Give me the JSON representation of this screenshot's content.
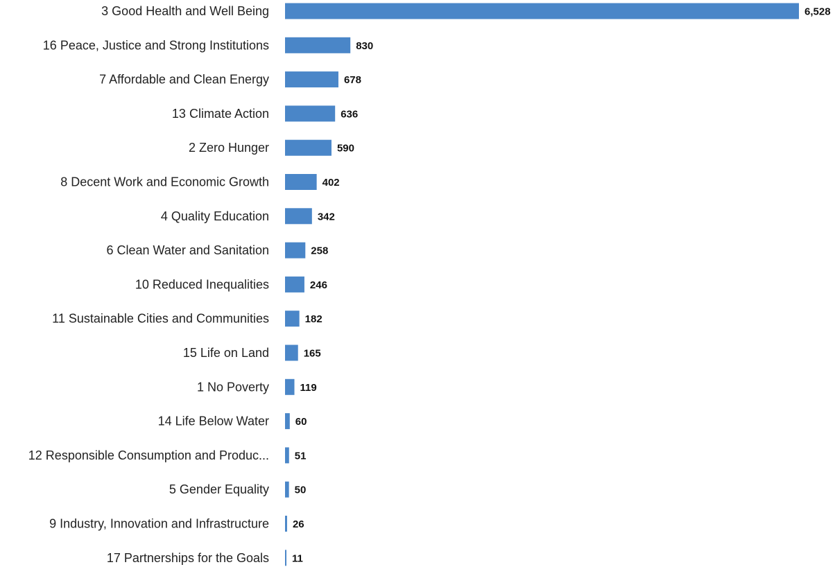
{
  "chart_data": {
    "type": "bar",
    "orientation": "horizontal",
    "categories": [
      "3 Good Health and Well Being",
      "16 Peace, Justice and Strong Institutions",
      "7 Affordable and Clean Energy",
      "13 Climate Action",
      "2 Zero Hunger",
      "8 Decent Work and Economic Growth",
      "4 Quality Education",
      "6 Clean Water and Sanitation",
      "10 Reduced Inequalities",
      "11 Sustainable Cities and Communities",
      "15 Life on Land",
      "1 No Poverty",
      "14 Life Below Water",
      "12 Responsible Consumption and Produc...",
      "5 Gender Equality",
      "9 Industry, Innovation and Infrastructure",
      "17 Partnerships for the Goals"
    ],
    "values": [
      6528,
      830,
      678,
      636,
      590,
      402,
      342,
      258,
      246,
      182,
      165,
      119,
      60,
      51,
      50,
      26,
      11
    ],
    "value_labels": [
      "6,528",
      "830",
      "678",
      "636",
      "590",
      "402",
      "342",
      "258",
      "246",
      "182",
      "165",
      "119",
      "60",
      "51",
      "50",
      "26",
      "11"
    ],
    "title": "",
    "xlabel": "",
    "ylabel": "",
    "xlim": [
      0,
      6528
    ],
    "grid": false,
    "legend": "none",
    "bar_color": "#4a86c8"
  }
}
